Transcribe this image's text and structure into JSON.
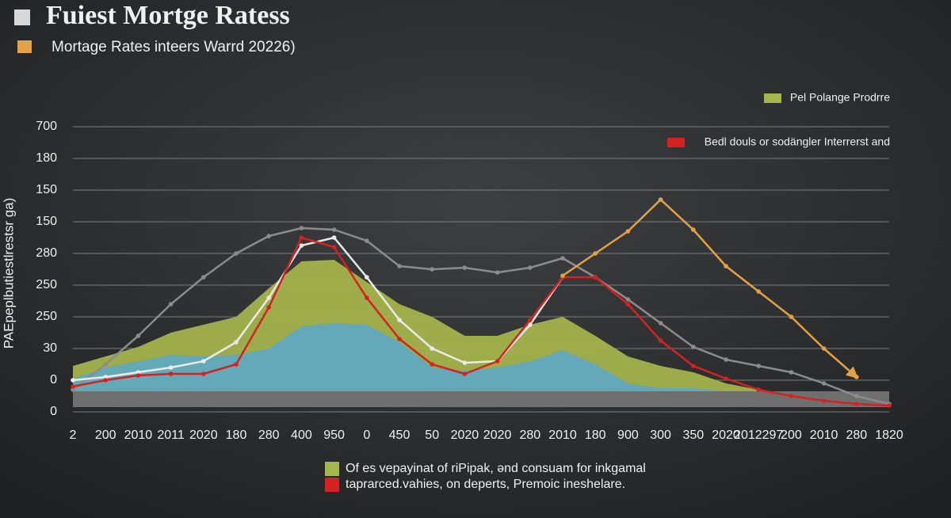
{
  "chart_data": {
    "type": "line",
    "title": "Fuiest Mortge Ratess",
    "subtitle": "Mortage Rates inteers Warrd 20226)",
    "y_label": "PAEpeplbutiestlrestsr ga)",
    "categories": [
      "2",
      "200",
      "2010",
      "2011",
      "2020",
      "180",
      "280",
      "400",
      "950",
      "0",
      "450",
      "50",
      "2020",
      "2020",
      "280",
      "2010",
      "180",
      "900",
      "300",
      "350",
      "2020",
      "2012297",
      "200",
      "2010",
      "280",
      "1820"
    ],
    "ylim": [
      0,
      9
    ],
    "yticks": [
      {
        "value": 9,
        "label": "700"
      },
      {
        "value": 8,
        "label": "180"
      },
      {
        "value": 7,
        "label": "150"
      },
      {
        "value": 6,
        "label": "150"
      },
      {
        "value": 5,
        "label": "280"
      },
      {
        "value": 4,
        "label": "250"
      },
      {
        "value": 3,
        "label": "250"
      },
      {
        "value": 2,
        "label": "30"
      },
      {
        "value": 1,
        "label": "0"
      },
      0
    ],
    "grid": true,
    "legend_position": "upper right",
    "series": [
      {
        "name": "Pel Polange Prodrre",
        "kind": "area",
        "color": "#a7b64c",
        "values": [
          1.45,
          1.75,
          2.05,
          2.5,
          2.75,
          3.0,
          3.9,
          4.75,
          4.8,
          4.1,
          3.4,
          3.0,
          2.4,
          2.4,
          2.75,
          3.0,
          2.4,
          1.75,
          1.45,
          1.25,
          0.9,
          0.7,
          0.5,
          0.4,
          0.3,
          0.25
        ]
      },
      {
        "kind": "area",
        "color": "#5fa8c2",
        "values": [
          1.05,
          1.4,
          1.6,
          1.8,
          1.75,
          1.8,
          2.0,
          2.7,
          2.8,
          2.75,
          2.2,
          1.4,
          1.3,
          1.4,
          1.6,
          1.95,
          1.5,
          0.9,
          0.75,
          0.75,
          0.65,
          0.55,
          0.5,
          0.4,
          0.3,
          0.25
        ]
      },
      {
        "kind": "line",
        "color": "#8c8c8c",
        "values": [
          0.7,
          1.5,
          2.4,
          3.4,
          4.25,
          5.0,
          5.55,
          5.8,
          5.75,
          5.4,
          4.6,
          4.5,
          4.55,
          4.4,
          4.55,
          4.85,
          4.25,
          3.55,
          2.8,
          2.05,
          1.65,
          1.45,
          1.25,
          0.9,
          0.5,
          0.25
        ]
      },
      {
        "kind": "line",
        "color": "#eaeaea",
        "values": [
          1.0,
          1.1,
          1.25,
          1.4,
          1.6,
          2.2,
          3.6,
          5.25,
          5.5,
          4.25,
          2.9,
          2.0,
          1.55,
          1.6,
          2.75,
          4.25,
          null,
          null,
          null,
          null,
          null,
          null,
          null,
          null,
          null,
          null
        ]
      },
      {
        "name": "Bedl douls or sodängler Interrerst and",
        "kind": "line",
        "color": "#d42222",
        "values": [
          0.8,
          1.0,
          1.15,
          1.2,
          1.2,
          1.5,
          3.3,
          5.5,
          5.2,
          3.6,
          2.3,
          1.5,
          1.2,
          1.6,
          2.9,
          4.25,
          4.25,
          3.4,
          2.25,
          1.45,
          1.05,
          0.7,
          0.5,
          0.35,
          0.25,
          0.2
        ]
      },
      {
        "kind": "line",
        "color": "#e3a247",
        "end_arrow": true,
        "values": [
          null,
          null,
          null,
          null,
          null,
          null,
          null,
          null,
          null,
          null,
          null,
          null,
          null,
          null,
          null,
          4.3,
          5.0,
          5.7,
          6.7,
          5.75,
          4.6,
          3.8,
          3.0,
          2.0,
          1.1,
          null
        ]
      }
    ],
    "footer_legend": [
      {
        "label": "Of es vepayinat of riPipak, ənd consuam for inkgamal",
        "color": "#a7b64c"
      },
      {
        "label": "taprarced.vahies, on deperts, Premoic ineshelare.",
        "color": "#d42222"
      }
    ]
  }
}
